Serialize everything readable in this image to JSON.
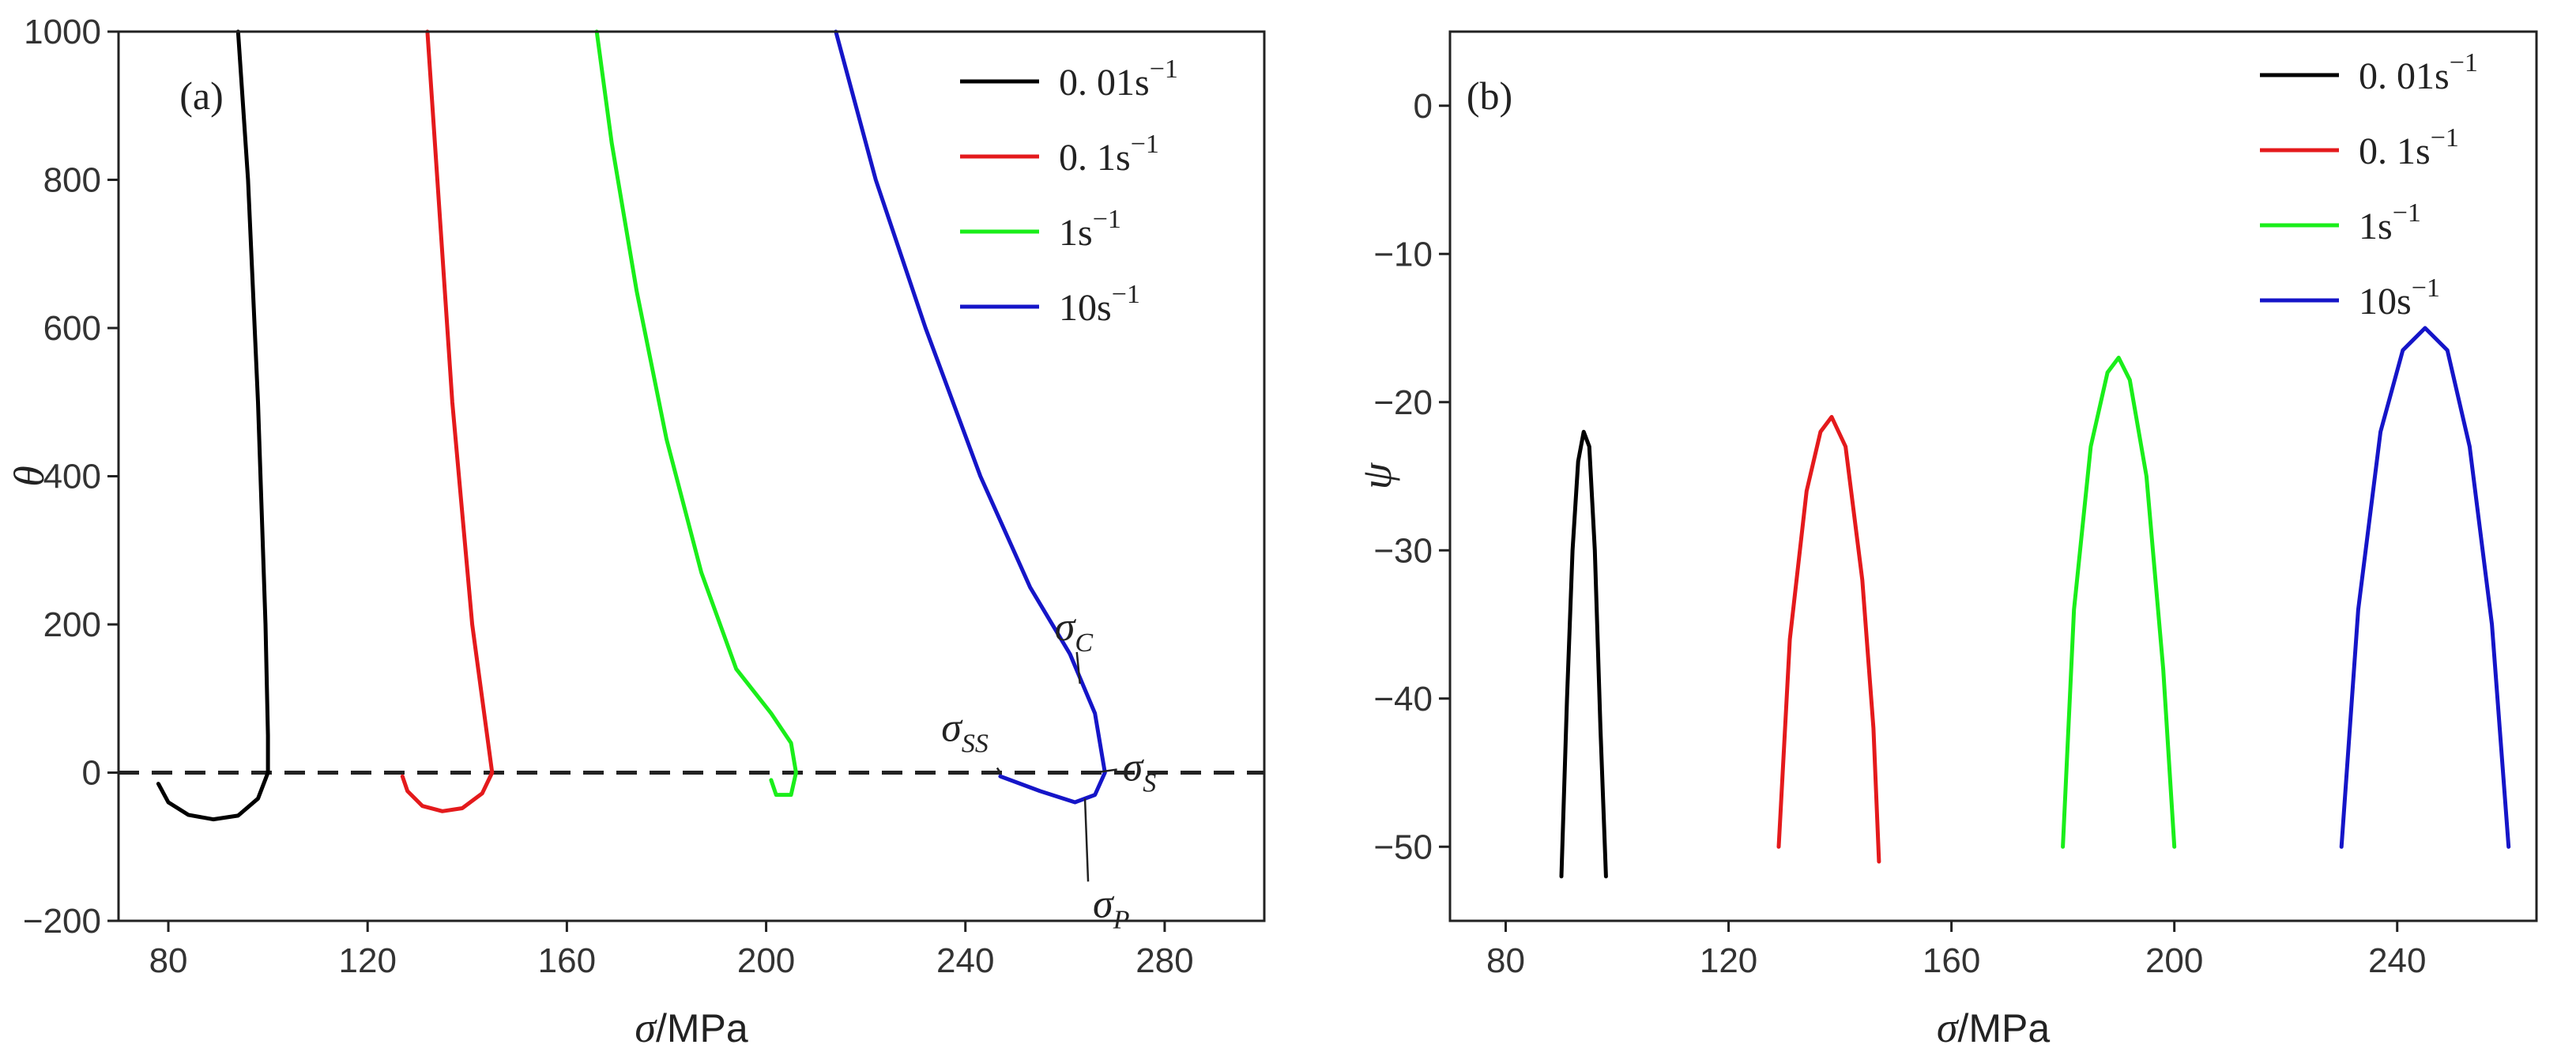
{
  "chart_data": [
    {
      "type": "line",
      "panel_label": "(a)",
      "xlabel_symbol": "σ",
      "xlabel_unit": "/MPa",
      "ylabel": "θ",
      "xlim": [
        70,
        300
      ],
      "ylim": [
        -200,
        1000
      ],
      "xticks": [
        80,
        120,
        160,
        200,
        240,
        280
      ],
      "yticks": [
        -200,
        0,
        200,
        400,
        600,
        800,
        1000
      ],
      "ytick_labels": [
        "−200",
        "0",
        "200",
        "400",
        "600",
        "800",
        "1000"
      ],
      "reference_line": {
        "y": 0,
        "style": "dashed",
        "color": "#222222"
      },
      "series": [
        {
          "name": "0. 01s",
          "exp": "−1",
          "color": "#000000",
          "points": [
            [
              94,
              1000
            ],
            [
              96,
              800
            ],
            [
              98,
              500
            ],
            [
              99.5,
              200
            ],
            [
              100,
              50
            ],
            [
              100,
              0
            ],
            [
              98,
              -35
            ],
            [
              94,
              -58
            ],
            [
              89,
              -63
            ],
            [
              84,
              -57
            ],
            [
              80,
              -40
            ],
            [
              78,
              -15
            ]
          ]
        },
        {
          "name": "0. 1s",
          "exp": "−1",
          "color": "#e41a1c",
          "points": [
            [
              132,
              1000
            ],
            [
              134,
              800
            ],
            [
              137,
              500
            ],
            [
              141,
              200
            ],
            [
              144,
              50
            ],
            [
              145,
              0
            ],
            [
              143,
              -28
            ],
            [
              139,
              -48
            ],
            [
              135,
              -52
            ],
            [
              131,
              -45
            ],
            [
              128,
              -25
            ],
            [
              127,
              -5
            ]
          ]
        },
        {
          "name": "1s",
          "exp": "−1",
          "color": "#1aee1a",
          "points": [
            [
              166,
              1000
            ],
            [
              169,
              850
            ],
            [
              174,
              650
            ],
            [
              180,
              450
            ],
            [
              187,
              270
            ],
            [
              194,
              140
            ],
            [
              201,
              80
            ],
            [
              205,
              40
            ],
            [
              206,
              0
            ],
            [
              205,
              -30
            ],
            [
              202,
              -30
            ],
            [
              201,
              -10
            ]
          ]
        },
        {
          "name": "10s",
          "exp": "−1",
          "color": "#1515c8",
          "points": [
            [
              214,
              1000
            ],
            [
              222,
              800
            ],
            [
              232,
              600
            ],
            [
              243,
              400
            ],
            [
              253,
              250
            ],
            [
              261,
              160
            ],
            [
              266,
              80
            ],
            [
              268,
              0
            ],
            [
              266,
              -30
            ],
            [
              262,
              -40
            ],
            [
              255,
              -25
            ],
            [
              247,
              -5
            ]
          ]
        }
      ],
      "annotations": [
        {
          "base": "σ",
          "sub": "C",
          "point": [
            263,
            120
          ]
        },
        {
          "base": "σ",
          "sub": "SS",
          "point": [
            247,
            0
          ]
        },
        {
          "base": "σ",
          "sub": "S",
          "point": [
            266,
            0
          ]
        },
        {
          "base": "σ",
          "sub": "P",
          "point": [
            264,
            -35
          ]
        }
      ]
    },
    {
      "type": "line",
      "panel_label": "(b)",
      "xlabel_symbol": "σ",
      "xlabel_unit": "/MPa",
      "ylabel": "ψ",
      "xlim": [
        70,
        265
      ],
      "ylim": [
        -55,
        5
      ],
      "xticks": [
        80,
        120,
        160,
        200,
        240
      ],
      "yticks": [
        -50,
        -40,
        -30,
        -20,
        -10,
        0
      ],
      "ytick_labels": [
        "−50",
        "−40",
        "−30",
        "−20",
        "−10",
        "0"
      ],
      "series": [
        {
          "name": "0. 01s",
          "exp": "−1",
          "color": "#000000",
          "points": [
            [
              90,
              -52
            ],
            [
              91,
              -40
            ],
            [
              92,
              -30
            ],
            [
              93,
              -24
            ],
            [
              94,
              -22
            ],
            [
              95,
              -23
            ],
            [
              96,
              -30
            ],
            [
              97,
              -42
            ],
            [
              98,
              -52
            ]
          ]
        },
        {
          "name": "0. 1s",
          "exp": "−1",
          "color": "#e41a1c",
          "points": [
            [
              129,
              -50
            ],
            [
              131,
              -36
            ],
            [
              134,
              -26
            ],
            [
              136.5,
              -22
            ],
            [
              138.5,
              -21
            ],
            [
              141,
              -23
            ],
            [
              144,
              -32
            ],
            [
              146,
              -42
            ],
            [
              147,
              -51
            ]
          ]
        },
        {
          "name": "1s",
          "exp": "−1",
          "color": "#1aee1a",
          "points": [
            [
              180,
              -50
            ],
            [
              182,
              -34
            ],
            [
              185,
              -23
            ],
            [
              188,
              -18
            ],
            [
              190,
              -17
            ],
            [
              192,
              -18.5
            ],
            [
              195,
              -25
            ],
            [
              198,
              -38
            ],
            [
              200,
              -50
            ]
          ]
        },
        {
          "name": "10s",
          "exp": "−1",
          "color": "#1515c8",
          "points": [
            [
              230,
              -50
            ],
            [
              233,
              -34
            ],
            [
              237,
              -22
            ],
            [
              241,
              -16.5
            ],
            [
              245,
              -15
            ],
            [
              249,
              -16.5
            ],
            [
              253,
              -23
            ],
            [
              257,
              -35
            ],
            [
              260,
              -50
            ]
          ]
        }
      ]
    }
  ]
}
